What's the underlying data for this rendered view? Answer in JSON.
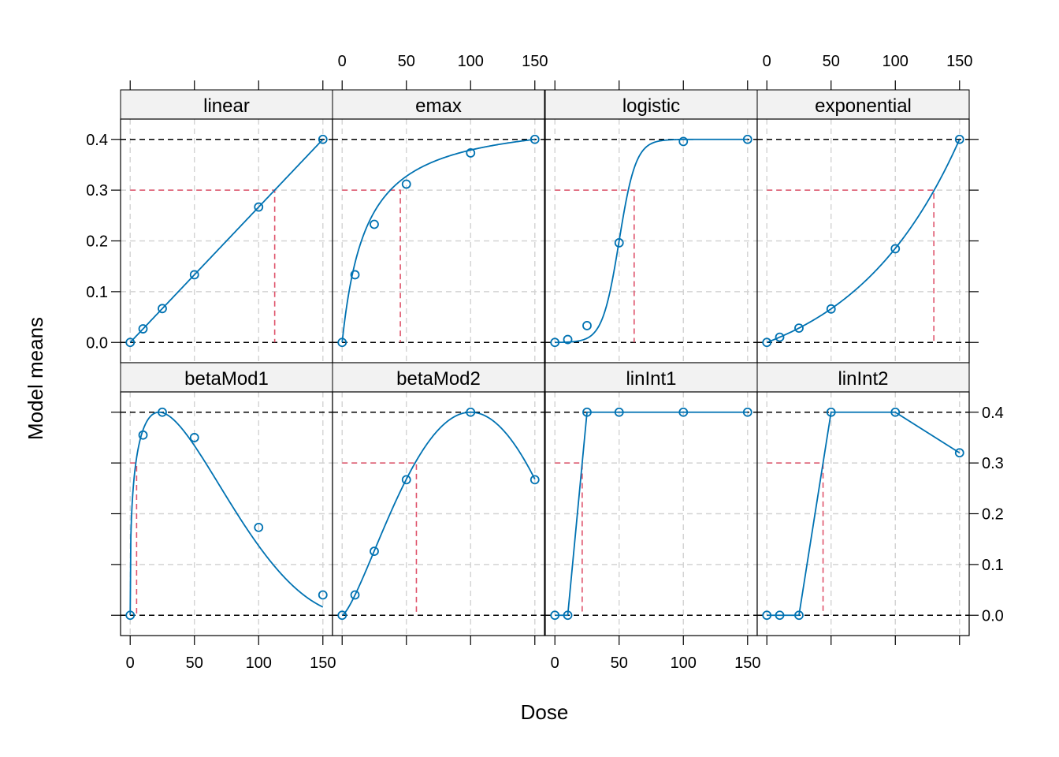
{
  "chart_data": {
    "type": "line",
    "xlabel": "Dose",
    "ylabel": "Model means",
    "xlim": [
      -7.5,
      157.5
    ],
    "ylim": [
      -0.04,
      0.44
    ],
    "x_ticks": [
      0,
      50,
      100,
      150
    ],
    "y_ticks": [
      0.0,
      0.1,
      0.2,
      0.3,
      0.4
    ],
    "y_tick_labels": [
      "0.0",
      "0.1",
      "0.2",
      "0.3",
      "0.4"
    ],
    "max_effect": 0.4,
    "target_effect": 0.3,
    "doses": [
      0,
      10,
      25,
      50,
      100,
      150
    ],
    "colors": {
      "series": "#0072B2",
      "target": "#DF536B",
      "reference": "#000000",
      "grid": "#d3d3d3",
      "strip": "#f2f2f2"
    },
    "panels": [
      {
        "name": "linear",
        "values": [
          0.0,
          0.0267,
          0.0667,
          0.1333,
          0.2667,
          0.4
        ],
        "target_dose": 112.5,
        "curve": "linear"
      },
      {
        "name": "emax",
        "values": [
          0.0,
          0.1333,
          0.2326,
          0.3118,
          0.3733,
          0.4
        ],
        "target_dose": 45.3,
        "curve": "emax"
      },
      {
        "name": "logistic",
        "values": [
          0.0,
          0.0057,
          0.0331,
          0.1962,
          0.3958,
          0.4
        ],
        "target_dose": 61.7,
        "curve": "logistic"
      },
      {
        "name": "exponential",
        "values": [
          0.0,
          0.0103,
          0.0282,
          0.0659,
          0.1846,
          0.4
        ],
        "target_dose": 130.0,
        "curve": "exponential"
      },
      {
        "name": "betaMod1",
        "values": [
          0.0,
          0.355,
          0.4,
          0.35,
          0.173,
          0.04
        ],
        "target_dose": 5.0,
        "curve": "betaMod1"
      },
      {
        "name": "betaMod2",
        "values": [
          0.0,
          0.04,
          0.126,
          0.267,
          0.4,
          0.267
        ],
        "target_dose": 57.8,
        "curve": "betaMod2"
      },
      {
        "name": "linInt1",
        "values": [
          0.0,
          0.0,
          0.4,
          0.4,
          0.4,
          0.4
        ],
        "target_dose": 21.25,
        "curve": "piecewise"
      },
      {
        "name": "linInt2",
        "values": [
          0.0,
          0.0,
          0.0,
          0.4,
          0.4,
          0.32
        ],
        "target_dose": 43.75,
        "curve": "piecewise"
      }
    ]
  }
}
